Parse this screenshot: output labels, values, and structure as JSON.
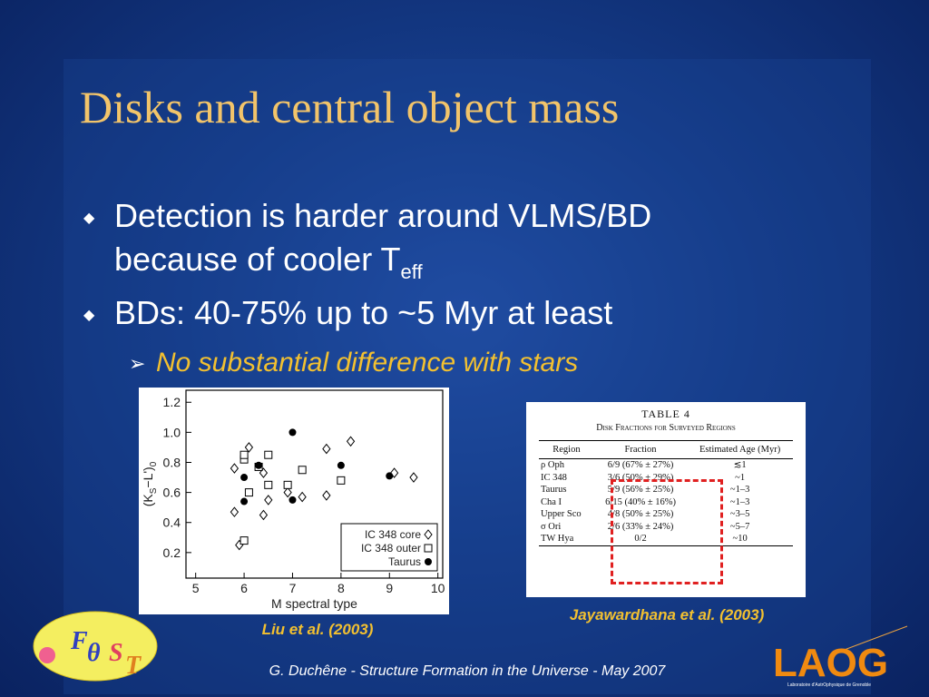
{
  "slide": {
    "title": "Disks and central object mass",
    "bullets": [
      {
        "text": "Detection is harder around VLMS/BD",
        "text2": "because of cooler T",
        "sub": "eff"
      },
      {
        "text": "BDs: 40-75% up to ~5 Myr at least"
      }
    ],
    "subbullet": "No substantial difference with stars",
    "caption_left": "Liu et al. (2003)",
    "caption_right": "Jayawardhana et al. (2003)",
    "footer": "G. Duchêne - Structure Formation in the Universe - May 2007",
    "logo_left": [
      "F",
      "θ",
      "S",
      "T"
    ],
    "logo_right": "LAOG",
    "logo_right_sub": "Laboratoire d'AstrOphysique de Grenoble"
  },
  "table": {
    "title": "TABLE 4",
    "subtitle": "Disk Fractions for Surveyed Regions",
    "headers": [
      "Region",
      "Fraction",
      "Estimated Age (Myr)"
    ],
    "rows": [
      [
        "ρ Oph",
        "6/9 (67% ± 27%)",
        "≲1"
      ],
      [
        "IC 348",
        "3/6 (50% ± 29%)",
        "~1"
      ],
      [
        "Taurus",
        "5/9 (56% ± 25%)",
        "~1–3"
      ],
      [
        "Cha I",
        "6/15 (40% ± 16%)",
        "~1–3"
      ],
      [
        "Upper Sco",
        "4/8 (50% ± 25%)",
        "~3–5"
      ],
      [
        "σ Ori",
        "2/6 (33% ± 24%)",
        "~5–7"
      ],
      [
        "TW Hya",
        "0/2",
        "~10"
      ]
    ]
  },
  "chart_data": {
    "type": "scatter",
    "xlabel": "M spectral type",
    "ylabel": [
      "(K",
      "S",
      "−L')",
      "0"
    ],
    "xlim": [
      4.8,
      10.1
    ],
    "ylim": [
      0.03,
      1.28
    ],
    "xticks": [
      5,
      6,
      7,
      8,
      9,
      10
    ],
    "yticks": [
      0.2,
      0.4,
      0.6,
      0.8,
      {
        "value": 1,
        "label": "1.0"
      },
      1.2
    ],
    "legend": "lower right",
    "series": [
      {
        "name": "IC 348 core",
        "marker": "diamond",
        "color": "#000000",
        "x": [
          5.8,
          5.8,
          5.9,
          6.0,
          6.1,
          6.4,
          6.5,
          6.4,
          6.9,
          7.2,
          7.7,
          7.7,
          8.2,
          9.1,
          9.5
        ],
        "values": [
          0.47,
          0.76,
          0.25,
          0.83,
          0.9,
          0.73,
          0.55,
          0.45,
          0.6,
          0.57,
          0.58,
          0.89,
          0.94,
          0.73,
          0.7
        ]
      },
      {
        "name": "IC 348 outer",
        "marker": "square",
        "color": "#000000",
        "x": [
          6.0,
          6.0,
          6.0,
          6.1,
          6.3,
          6.5,
          6.5,
          6.9,
          7.2,
          8.0
        ],
        "values": [
          0.28,
          0.82,
          0.85,
          0.6,
          0.77,
          0.85,
          0.65,
          0.65,
          0.75,
          0.68
        ]
      },
      {
        "name": "Taurus",
        "marker": "circle",
        "color": "#000000",
        "x": [
          6.0,
          6.0,
          6.3,
          7.0,
          7.0,
          8.0,
          9.0
        ],
        "values": [
          0.54,
          0.7,
          0.78,
          1.0,
          0.55,
          0.78,
          0.71
        ]
      }
    ]
  }
}
